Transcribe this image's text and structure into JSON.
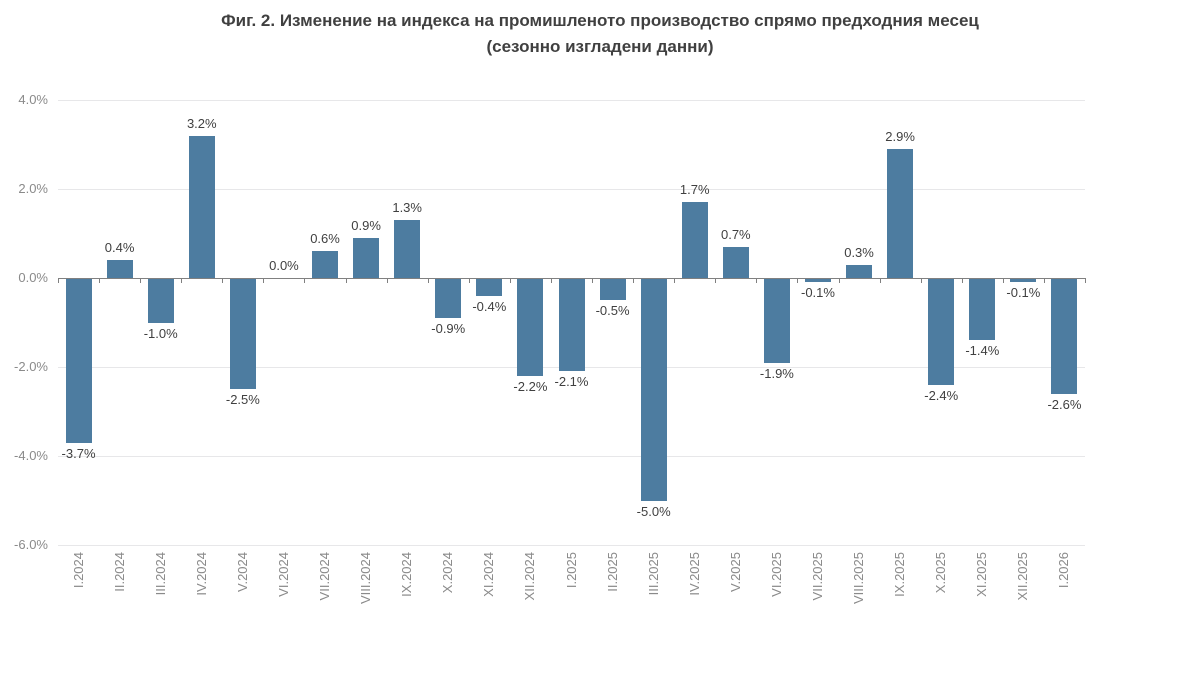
{
  "title": {
    "line1": "Фиг. 2. Изменение на индекса на промишленото производство спрямо предходния месец",
    "line2": "(сезонно изгладени данни)"
  },
  "chart_data": {
    "type": "bar",
    "title": "Фиг. 2. Изменение на индекса на промишленото производство спрямо предходния месец",
    "subtitle": "(сезонно изгладени данни)",
    "categories": [
      "I.2024",
      "II.2024",
      "III.2024",
      "IV.2024",
      "V.2024",
      "VI.2024",
      "VII.2024",
      "VIII.2024",
      "IX.2024",
      "X.2024",
      "XI.2024",
      "XII.2024",
      "I.2025",
      "II.2025",
      "III.2025",
      "IV.2025",
      "V.2025",
      "VI.2025",
      "VII.2025",
      "VIII.2025",
      "IX.2025",
      "X.2025",
      "XI.2025",
      "XII.2025",
      "I.2026"
    ],
    "values": [
      -3.7,
      0.4,
      -1.0,
      3.2,
      -2.5,
      0.0,
      0.6,
      0.9,
      1.3,
      -0.9,
      -0.4,
      -2.2,
      -2.1,
      -0.5,
      -5.0,
      1.7,
      0.7,
      -1.9,
      -0.1,
      0.3,
      2.9,
      -2.4,
      -1.4,
      -0.1,
      -2.6
    ],
    "labels": [
      "-3.7%",
      "0.4%",
      "-1.0%",
      "3.2%",
      "-2.5%",
      "0.0%",
      "0.6%",
      "0.9%",
      "1.3%",
      "-0.9%",
      "-0.4%",
      "-2.2%",
      "-2.1%",
      "-0.5%",
      "-5.0%",
      "1.7%",
      "0.7%",
      "-1.9%",
      "-0.1%",
      "0.3%",
      "2.9%",
      "-2.4%",
      "-1.4%",
      "-0.1%",
      "-2.6%"
    ],
    "xlabel": "",
    "ylabel": "",
    "y_axis": {
      "ylim": [
        -6.0,
        4.0
      ],
      "ticks": [
        4,
        2,
        0,
        -2,
        -4,
        -6
      ],
      "tick_labels": [
        "4.0%",
        "2.0%",
        "0.0%",
        "-2.0%",
        "-4.0%",
        "-6.0%"
      ]
    },
    "grid": true,
    "legend": false
  },
  "colors": {
    "bar": "#4d7ca0",
    "title_text": "#404040",
    "data_label": "#404040",
    "axis_label": "#8a8a8a",
    "gridline": "#e7e7e9",
    "zero_line": "#808080",
    "background": "#ffffff"
  }
}
